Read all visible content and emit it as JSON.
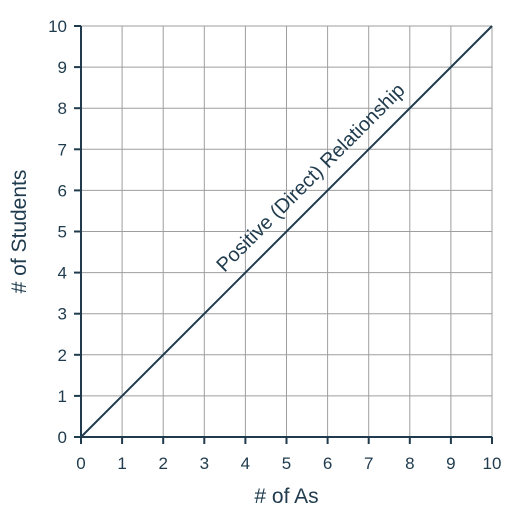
{
  "chart_data": {
    "type": "line",
    "xlabel": "# of As",
    "ylabel": "# of Students",
    "xlim": [
      0,
      10
    ],
    "ylim": [
      0,
      10
    ],
    "x_ticks": [
      "0",
      "1",
      "2",
      "3",
      "4",
      "5",
      "6",
      "7",
      "8",
      "9",
      "10"
    ],
    "y_ticks": [
      "0",
      "1",
      "2",
      "3",
      "4",
      "5",
      "6",
      "7",
      "8",
      "9",
      "10"
    ],
    "grid": true,
    "series": [
      {
        "x": [
          0,
          10
        ],
        "y": [
          0,
          10
        ]
      }
    ],
    "annotations": [
      {
        "text": "Positive (Direct) Relationship",
        "x": 5.7,
        "y": 6.2
      }
    ],
    "colors": {
      "line": "#1f3b4d",
      "grid": "#9e9e9e",
      "text": "#1f3b4d"
    }
  }
}
